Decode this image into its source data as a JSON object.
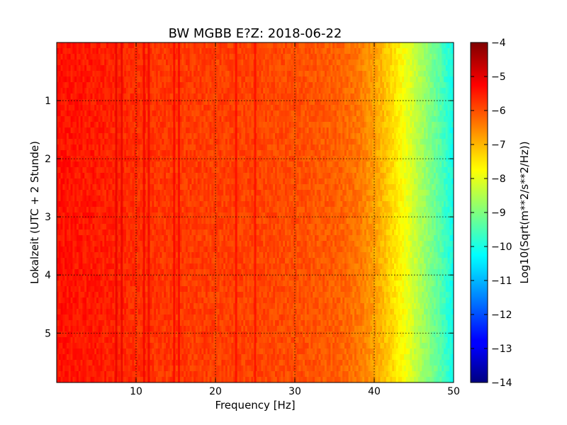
{
  "chart_data": {
    "type": "heatmap",
    "title": "BW MGBB E?Z: 2018-06-22",
    "xlabel": "Frequency [Hz]",
    "ylabel": "Lokalzeit (UTC + 2 Stunde)",
    "xlim": [
      0,
      50
    ],
    "ylim": [
      5.85,
      0
    ],
    "x_ticks": [
      10,
      20,
      30,
      40,
      50
    ],
    "y_ticks": [
      1,
      2,
      3,
      4,
      5
    ],
    "grid": true,
    "colormap": "jet",
    "colorbar": {
      "label": "Log10(Sqrt(m**2/s**2/Hz))",
      "range": [
        -14,
        -4
      ],
      "ticks": [
        -4,
        -5,
        -6,
        -7,
        -8,
        -9,
        -10,
        -11,
        -12,
        -13,
        -14
      ]
    },
    "spectral_profile": {
      "frequency_hz": [
        0,
        5,
        10,
        15,
        20,
        25,
        30,
        35,
        38,
        40,
        42,
        44,
        46,
        48,
        50
      ],
      "level": [
        -5.4,
        -5.5,
        -5.7,
        -5.8,
        -5.85,
        -5.9,
        -6.0,
        -6.15,
        -6.4,
        -6.8,
        -7.3,
        -7.9,
        -8.6,
        -9.3,
        -10.1
      ]
    },
    "spectral_lines_hz": [
      7.5,
      8.2,
      11.0,
      11.6,
      14.8,
      15.4,
      22.6,
      25.0
    ]
  }
}
